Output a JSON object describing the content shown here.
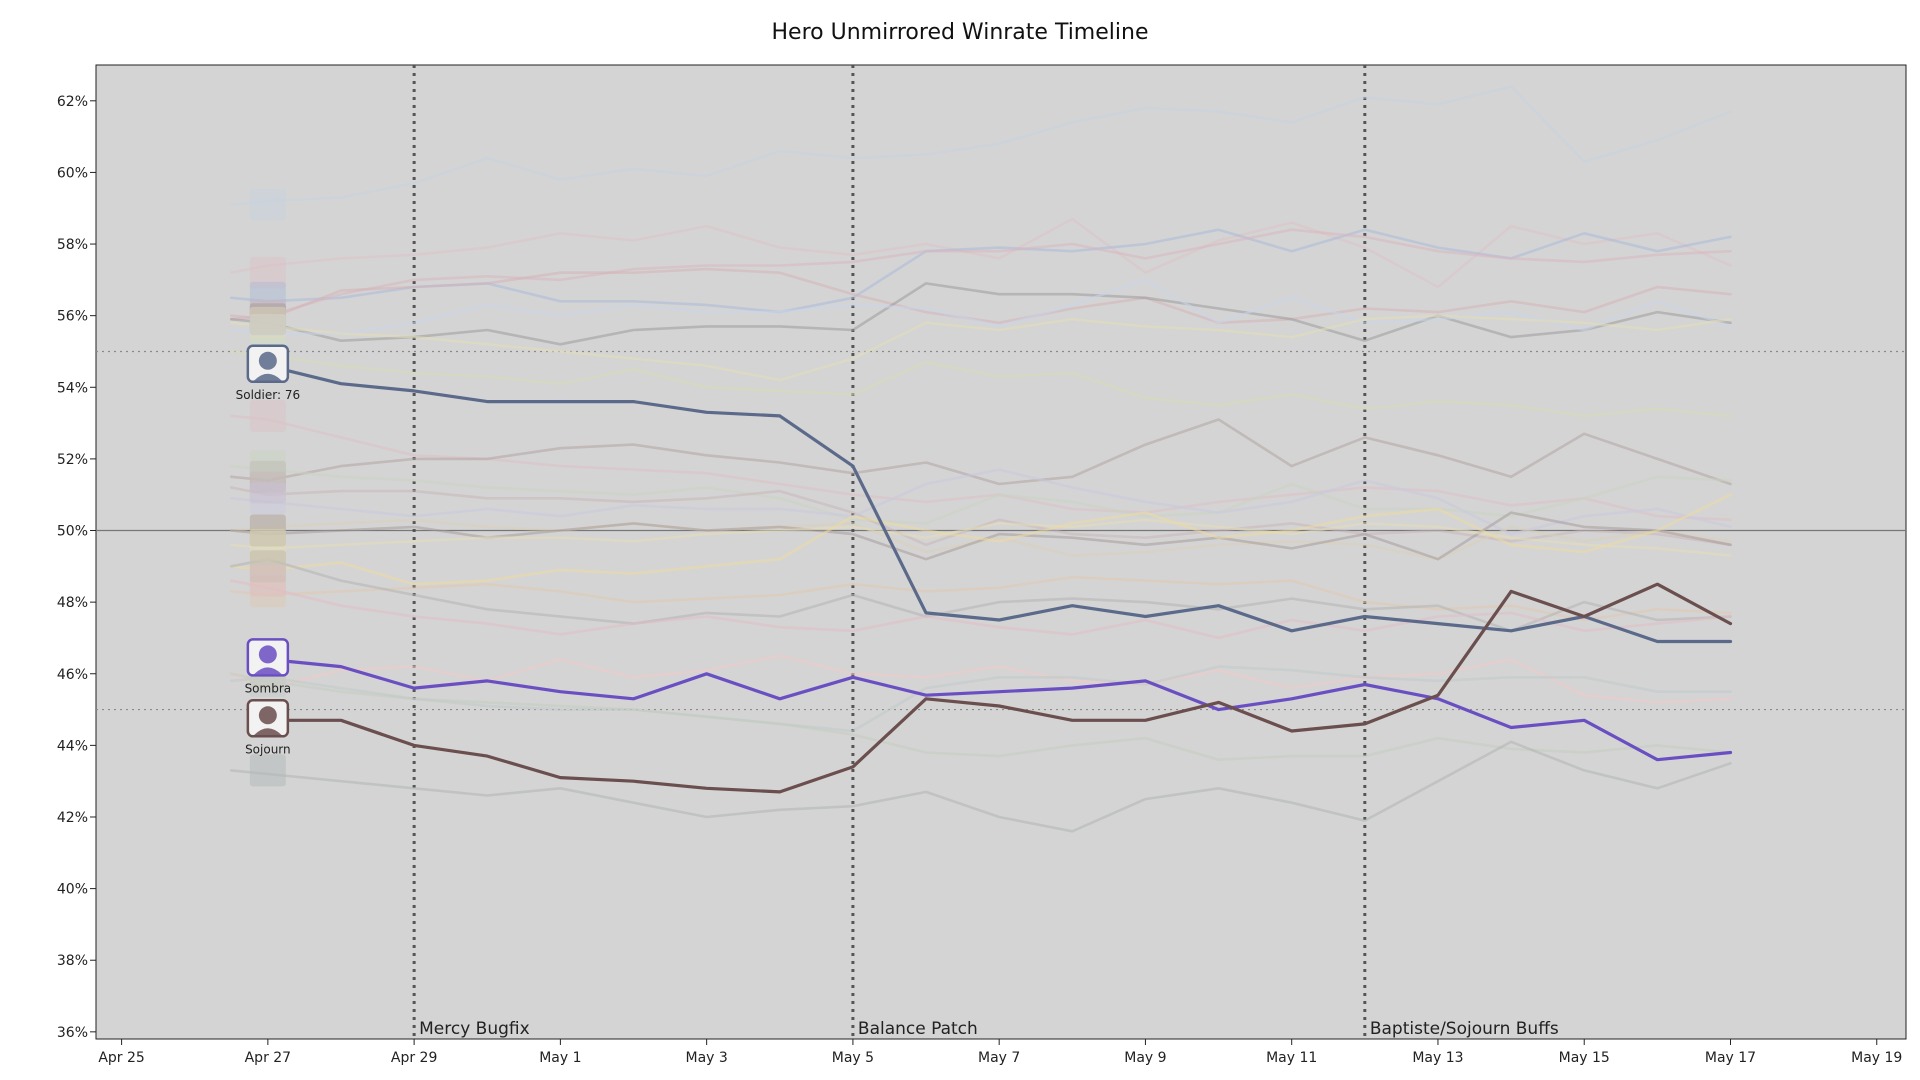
{
  "chart_data": {
    "type": "line",
    "title": "Hero Unmirrored Winrate Timeline",
    "xlabel": "",
    "ylabel": "",
    "x_ticks": [
      "Apr 25",
      "Apr 27",
      "Apr 29",
      "May 1",
      "May 3",
      "May 5",
      "May 7",
      "May 9",
      "May 11",
      "May 13",
      "May 15",
      "May 17",
      "May 19"
    ],
    "x_tick_days": [
      0,
      2,
      4,
      6,
      8,
      10,
      12,
      14,
      16,
      18,
      20,
      22,
      24
    ],
    "xlim_days": [
      -0.35,
      24.4
    ],
    "x_days": [
      1.5,
      2,
      3,
      4,
      5,
      6,
      7,
      8,
      9,
      10,
      11,
      12,
      13,
      14,
      15,
      16,
      17,
      18,
      19,
      20,
      21,
      22
    ],
    "dates": [
      "Apr 26.5",
      "Apr 27",
      "Apr 28",
      "Apr 29",
      "Apr 30",
      "May 1",
      "May 2",
      "May 3",
      "May 4",
      "May 5",
      "May 6",
      "May 7",
      "May 8",
      "May 9",
      "May 10",
      "May 11",
      "May 12",
      "May 13",
      "May 14",
      "May 15",
      "May 16",
      "May 17"
    ],
    "ylim": [
      35.8,
      63
    ],
    "y_ticks": [
      36,
      38,
      40,
      42,
      44,
      46,
      48,
      50,
      52,
      54,
      56,
      58,
      60,
      62
    ],
    "y_tick_labels": [
      "36%",
      "38%",
      "40%",
      "42%",
      "44%",
      "46%",
      "48%",
      "50%",
      "52%",
      "54%",
      "56%",
      "58%",
      "60%",
      "62%"
    ],
    "background_color": "#d4d4d4",
    "reference_lines": [
      {
        "y": 50,
        "style": "solid",
        "color": "#777777"
      },
      {
        "y": 55,
        "style": "dotted",
        "color": "#8a8a8a"
      },
      {
        "y": 45,
        "style": "dotted",
        "color": "#8a8a8a"
      }
    ],
    "events": [
      {
        "day": 4,
        "label": "Mercy Bugfix"
      },
      {
        "day": 10,
        "label": "Balance Patch"
      },
      {
        "day": 17,
        "label": "Baptiste/Sojourn Buffs"
      }
    ],
    "series": [
      {
        "name": "Soldier: 76",
        "color": "#5b6a8a",
        "highlight": true,
        "values": [
          null,
          54.6,
          54.1,
          53.9,
          53.6,
          53.6,
          53.6,
          53.3,
          53.2,
          51.8,
          47.7,
          47.5,
          47.9,
          47.6,
          47.9,
          47.2,
          47.6,
          47.4,
          47.2,
          47.6,
          46.9,
          46.9
        ]
      },
      {
        "name": "Sombra",
        "color": "#6a4fc2",
        "highlight": true,
        "values": [
          null,
          46.4,
          46.2,
          45.6,
          45.8,
          45.5,
          45.3,
          46.0,
          45.3,
          45.9,
          45.4,
          45.5,
          45.6,
          45.8,
          45.0,
          45.3,
          45.7,
          45.3,
          44.5,
          44.7,
          43.6,
          43.8
        ]
      },
      {
        "name": "Sojourn",
        "color": "#6b4e4e",
        "highlight": true,
        "values": [
          null,
          44.7,
          44.7,
          44.0,
          43.7,
          43.1,
          43.0,
          42.8,
          42.7,
          43.4,
          45.3,
          45.1,
          44.7,
          44.7,
          45.2,
          44.4,
          44.6,
          45.4,
          48.3,
          47.6,
          48.5,
          47.4
        ]
      },
      {
        "name": "",
        "color": "#c6d2e0",
        "values": [
          59.1,
          59.2,
          59.3,
          59.7,
          60.4,
          59.8,
          60.1,
          59.9,
          60.6,
          60.4,
          60.5,
          60.8,
          61.4,
          61.8,
          61.7,
          61.4,
          62.1,
          61.9,
          62.4,
          60.3,
          60.9,
          61.7
        ]
      },
      {
        "name": "",
        "color": "#dcc2c6",
        "values": [
          57.2,
          57.4,
          57.6,
          57.7,
          57.9,
          58.3,
          58.1,
          58.5,
          57.9,
          57.7,
          58.0,
          57.6,
          58.7,
          57.2,
          58.1,
          58.6,
          57.9,
          56.8,
          58.5,
          58.0,
          58.3,
          57.4
        ]
      },
      {
        "name": "",
        "color": "#a9b9d8",
        "values": [
          56.5,
          56.4,
          56.5,
          56.8,
          56.9,
          56.4,
          56.4,
          56.3,
          56.1,
          56.5,
          57.8,
          57.9,
          57.8,
          58.0,
          58.4,
          57.8,
          58.4,
          57.9,
          57.6,
          58.3,
          57.8,
          58.2
        ]
      },
      {
        "name": "",
        "color": "#d9b6bf",
        "values": [
          55.9,
          56.0,
          56.6,
          57.0,
          57.1,
          57.0,
          57.3,
          57.4,
          57.4,
          57.5,
          57.8,
          57.8,
          58.0,
          57.6,
          58.0,
          58.4,
          58.2,
          57.8,
          57.6,
          57.5,
          57.7,
          57.8
        ]
      },
      {
        "name": "",
        "color": "#d3b3b6",
        "values": [
          56.0,
          55.9,
          56.7,
          56.8,
          56.9,
          57.2,
          57.2,
          57.3,
          57.2,
          56.6,
          56.1,
          55.8,
          56.2,
          56.5,
          55.8,
          55.9,
          56.2,
          56.1,
          56.4,
          56.1,
          56.8,
          56.6
        ]
      },
      {
        "name": "",
        "color": "#9a9a9a",
        "values": [
          55.9,
          55.8,
          55.3,
          55.4,
          55.6,
          55.2,
          55.6,
          55.7,
          55.7,
          55.6,
          56.9,
          56.6,
          56.6,
          56.5,
          56.2,
          55.9,
          55.3,
          56.0,
          55.4,
          55.6,
          56.1,
          55.8
        ]
      },
      {
        "name": "",
        "color": "#c8d6ea",
        "values": [
          55.6,
          55.5,
          55.5,
          55.8,
          56.3,
          56.0,
          56.3,
          56.1,
          56.1,
          56.3,
          56.2,
          55.7,
          56.3,
          57.0,
          55.8,
          56.5,
          55.8,
          55.9,
          56.1,
          55.6,
          56.4,
          55.7
        ]
      },
      {
        "name": "",
        "color": "#e2dcb8",
        "values": [
          55.8,
          55.7,
          55.5,
          55.4,
          55.2,
          55.0,
          54.8,
          54.6,
          54.2,
          54.8,
          55.8,
          55.6,
          55.9,
          55.7,
          55.6,
          55.4,
          55.9,
          56.0,
          55.9,
          55.8,
          55.6,
          55.9
        ]
      },
      {
        "name": "",
        "color": "#d6dcb4",
        "values": [
          55.0,
          54.9,
          54.6,
          54.4,
          54.3,
          54.1,
          54.5,
          54.0,
          53.9,
          53.8,
          54.7,
          54.3,
          54.4,
          53.7,
          53.5,
          53.8,
          53.4,
          53.6,
          53.5,
          53.2,
          53.4,
          53.2
        ]
      },
      {
        "name": "",
        "color": "#dcc0c6",
        "values": [
          53.2,
          53.1,
          52.6,
          52.1,
          52.0,
          51.8,
          51.7,
          51.6,
          51.3,
          51.0,
          50.8,
          51.0,
          50.6,
          50.5,
          50.8,
          51.0,
          51.2,
          51.1,
          50.7,
          50.9,
          50.4,
          50.3
        ]
      },
      {
        "name": "",
        "color": "#b2a2a2",
        "values": [
          51.5,
          51.4,
          51.8,
          52.0,
          52.0,
          52.3,
          52.4,
          52.1,
          51.9,
          51.6,
          51.9,
          51.3,
          51.5,
          52.4,
          53.1,
          51.8,
          52.6,
          52.1,
          51.5,
          52.7,
          52.0,
          51.3
        ]
      },
      {
        "name": "",
        "color": "#c9d4c1",
        "values": [
          51.8,
          51.7,
          51.5,
          51.4,
          51.2,
          51.1,
          51.0,
          51.2,
          50.9,
          50.3,
          50.2,
          51.0,
          50.8,
          50.4,
          50.5,
          51.3,
          50.6,
          50.6,
          50.4,
          50.9,
          51.5,
          51.4
        ]
      },
      {
        "name": "",
        "color": "#c8b4b8",
        "values": [
          51.2,
          51.0,
          51.1,
          51.1,
          50.9,
          50.9,
          50.8,
          50.9,
          51.1,
          50.5,
          49.6,
          50.3,
          49.9,
          49.8,
          50.0,
          50.2,
          49.9,
          50.0,
          49.7,
          50.0,
          49.9,
          49.6
        ]
      },
      {
        "name": "",
        "color": "#c9c9e0",
        "values": [
          50.9,
          50.8,
          50.6,
          50.4,
          50.6,
          50.4,
          50.7,
          50.6,
          50.6,
          50.4,
          51.3,
          51.7,
          51.2,
          50.8,
          50.5,
          50.8,
          51.4,
          50.9,
          49.9,
          50.4,
          50.6,
          50.1
        ]
      },
      {
        "name": "",
        "color": "#d8d0b8",
        "values": [
          50.0,
          50.1,
          50.2,
          50.3,
          50.1,
          50.0,
          50.2,
          50.0,
          50.1,
          50.2,
          49.4,
          49.8,
          49.3,
          49.4,
          49.6,
          49.7,
          49.6,
          49.2,
          50.1,
          49.7,
          50.0,
          49.7
        ]
      },
      {
        "name": "",
        "color": "#a89b9b",
        "values": [
          50.0,
          49.9,
          50.0,
          50.1,
          49.8,
          50.0,
          50.2,
          50.0,
          50.1,
          49.9,
          49.2,
          49.9,
          49.8,
          49.6,
          49.8,
          49.5,
          49.9,
          49.2,
          50.5,
          50.1,
          50.0,
          49.6
        ]
      },
      {
        "name": "",
        "color": "#e3ddb6",
        "values": [
          49.6,
          49.5,
          49.6,
          49.7,
          49.8,
          49.8,
          49.7,
          49.9,
          50.0,
          50.1,
          49.8,
          50.2,
          50.1,
          50.3,
          50.1,
          49.9,
          50.2,
          50.1,
          49.8,
          49.6,
          49.5,
          49.3
        ]
      },
      {
        "name": "",
        "color": "#ecdaa0",
        "values": [
          49.0,
          48.9,
          49.1,
          48.5,
          48.6,
          48.9,
          48.8,
          49.0,
          49.2,
          50.4,
          50.0,
          49.7,
          50.2,
          50.5,
          49.8,
          50.0,
          50.4,
          50.6,
          49.6,
          49.4,
          50.0,
          51.0
        ]
      },
      {
        "name": "",
        "color": "#e0c8b0",
        "values": [
          48.3,
          48.2,
          48.3,
          48.4,
          48.5,
          48.3,
          48.0,
          48.1,
          48.2,
          48.5,
          48.3,
          48.4,
          48.7,
          48.6,
          48.5,
          48.6,
          48.0,
          47.8,
          47.9,
          47.5,
          47.8,
          47.7
        ]
      },
      {
        "name": "",
        "color": "#b3b3b3",
        "values": [
          49.0,
          49.2,
          48.6,
          48.2,
          47.8,
          47.6,
          47.4,
          47.7,
          47.6,
          48.2,
          47.6,
          48.0,
          48.1,
          48.0,
          47.8,
          48.1,
          47.8,
          47.9,
          47.2,
          48.0,
          47.5,
          47.6
        ]
      },
      {
        "name": "",
        "color": "#e0bcc4",
        "values": [
          48.6,
          48.4,
          47.9,
          47.6,
          47.4,
          47.1,
          47.4,
          47.6,
          47.3,
          47.2,
          47.6,
          47.3,
          47.1,
          47.5,
          47.0,
          47.5,
          47.2,
          47.6,
          47.7,
          47.2,
          47.4,
          47.6
        ]
      },
      {
        "name": "",
        "color": "#f0c8c8",
        "values": [
          46.0,
          45.6,
          46.1,
          46.2,
          45.8,
          46.4,
          45.9,
          46.1,
          46.5,
          46.0,
          45.9,
          46.2,
          45.8,
          45.7,
          46.1,
          45.6,
          45.9,
          46.0,
          46.4,
          45.4,
          45.2,
          45.3
        ]
      },
      {
        "name": "",
        "color": "#c0c9c8",
        "values": [
          45.8,
          45.9,
          45.6,
          45.3,
          45.1,
          45.0,
          45.0,
          44.8,
          44.6,
          44.4,
          45.6,
          45.9,
          45.9,
          45.7,
          46.2,
          46.1,
          45.9,
          45.8,
          45.9,
          45.9,
          45.5,
          45.5
        ]
      },
      {
        "name": "",
        "color": "#c2ccc0",
        "values": [
          46.0,
          45.8,
          45.5,
          45.3,
          45.2,
          45.1,
          45.0,
          44.8,
          44.6,
          44.3,
          43.8,
          43.7,
          44.0,
          44.2,
          43.6,
          43.7,
          43.7,
          44.2,
          43.9,
          43.8,
          44.0,
          43.8
        ]
      },
      {
        "name": "",
        "color": "#b0b5b5",
        "values": [
          43.3,
          43.2,
          43.0,
          42.8,
          42.6,
          42.8,
          42.4,
          42.0,
          42.2,
          42.3,
          42.7,
          42.0,
          41.6,
          42.5,
          42.8,
          42.4,
          41.9,
          43.0,
          44.1,
          43.3,
          42.8,
          43.5
        ]
      }
    ],
    "labeled_heroes": [
      {
        "name": "Soldier: 76",
        "value": 54.6
      },
      {
        "name": "Sombra",
        "value": 46.4
      },
      {
        "name": "Sojourn",
        "value": 44.7
      }
    ]
  }
}
